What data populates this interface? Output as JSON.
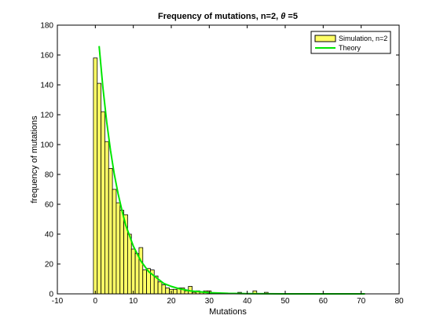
{
  "chart_data": {
    "type": "bar",
    "title": "Frequency of mutations, n=2, ",
    "title_theta": "θ",
    "title_suffix": " =5",
    "xlabel": "Mutations",
    "ylabel": "frequency of mutations",
    "xlim": [
      -10,
      80
    ],
    "ylim": [
      0,
      180
    ],
    "xticks": [
      -10,
      0,
      10,
      20,
      30,
      40,
      50,
      60,
      70,
      80
    ],
    "yticks": [
      0,
      20,
      40,
      60,
      80,
      100,
      120,
      140,
      160,
      180
    ],
    "grid": false,
    "legend_position": "top-right",
    "series": [
      {
        "name": "Simulation, n=2",
        "type": "bar",
        "color": "#ffff66",
        "edge_color": "#000000",
        "bin_width": 1,
        "bins": [
          [
            0,
            158
          ],
          [
            1,
            141
          ],
          [
            2,
            122
          ],
          [
            3,
            102
          ],
          [
            4,
            84
          ],
          [
            5,
            70
          ],
          [
            6,
            61
          ],
          [
            7,
            56
          ],
          [
            8,
            53
          ],
          [
            9,
            40
          ],
          [
            10,
            30
          ],
          [
            11,
            27
          ],
          [
            12,
            31
          ],
          [
            13,
            16
          ],
          [
            14,
            17
          ],
          [
            15,
            16
          ],
          [
            16,
            12
          ],
          [
            17,
            8
          ],
          [
            18,
            6
          ],
          [
            19,
            4
          ],
          [
            20,
            3
          ],
          [
            21,
            3
          ],
          [
            22,
            4
          ],
          [
            23,
            4
          ],
          [
            24,
            2
          ],
          [
            25,
            5
          ],
          [
            26,
            1
          ],
          [
            27,
            2
          ],
          [
            28,
            1
          ],
          [
            29,
            2
          ],
          [
            30,
            2
          ],
          [
            31,
            0.5
          ],
          [
            32,
            0.5
          ],
          [
            33,
            0.5
          ],
          [
            34,
            0.5
          ],
          [
            36,
            0.5
          ],
          [
            38,
            1
          ],
          [
            42,
            2
          ],
          [
            45,
            1
          ]
        ]
      },
      {
        "name": "Theory",
        "type": "line",
        "color": "#00e600",
        "x_start": 1,
        "x_end": 71,
        "points": [
          [
            1,
            166
          ],
          [
            2,
            138
          ],
          [
            3,
            115
          ],
          [
            4,
            96
          ],
          [
            5,
            80
          ],
          [
            6,
            67
          ],
          [
            7,
            56
          ],
          [
            8,
            46
          ],
          [
            9,
            39
          ],
          [
            10,
            32
          ],
          [
            12,
            22
          ],
          [
            14,
            15
          ],
          [
            16,
            11
          ],
          [
            18,
            7
          ],
          [
            20,
            5
          ],
          [
            22,
            3.5
          ],
          [
            25,
            2
          ],
          [
            30,
            0.8
          ],
          [
            35,
            0.3
          ],
          [
            40,
            0.1
          ],
          [
            50,
            0
          ],
          [
            60,
            0
          ],
          [
            71,
            0
          ]
        ]
      }
    ]
  }
}
